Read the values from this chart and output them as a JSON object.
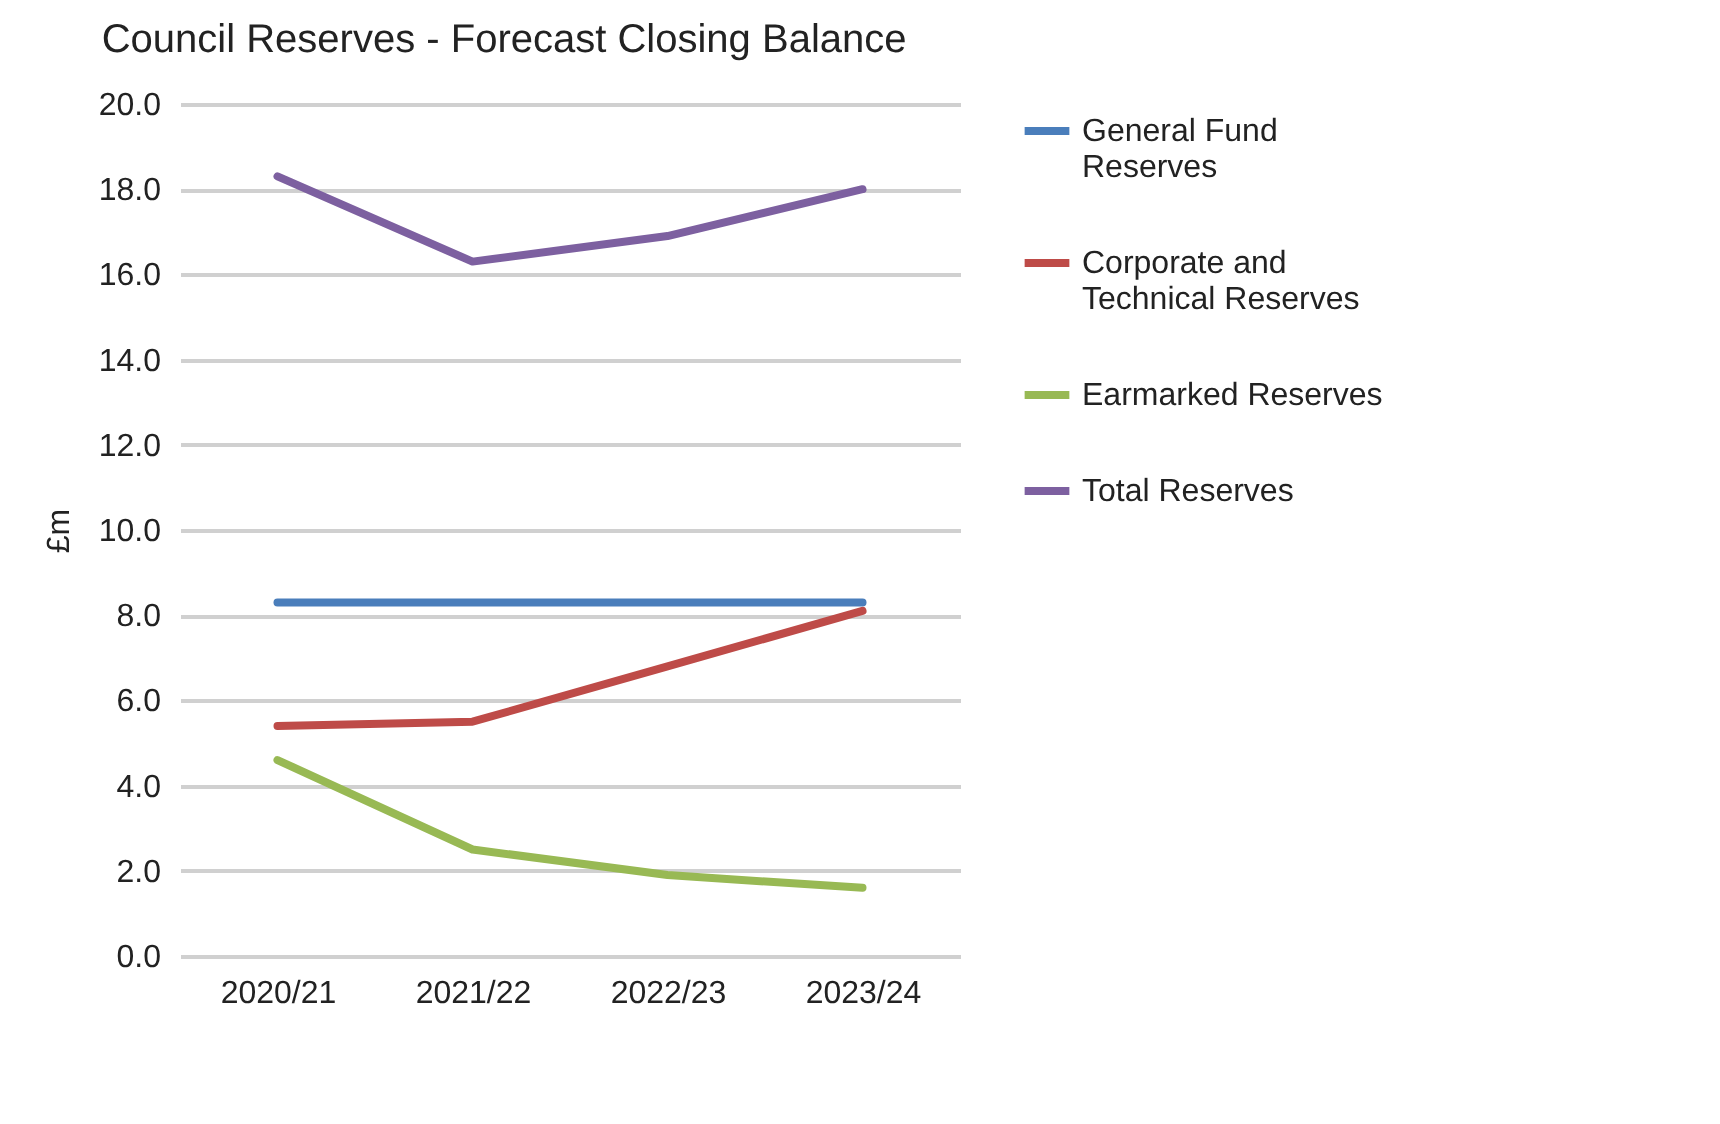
{
  "chart_data": {
    "type": "line",
    "title": "Council Reserves - Forecast Closing Balance",
    "ylabel": "£m",
    "categories": [
      "2020/21",
      "2021/22",
      "2022/23",
      "2023/24"
    ],
    "series": [
      {
        "name": "General Fund Reserves",
        "color": "#4a7ebb",
        "values": [
          8.3,
          8.3,
          8.3,
          8.3
        ]
      },
      {
        "name": "Corporate and Technical Reserves",
        "color": "#be4b48",
        "values": [
          5.4,
          5.5,
          6.8,
          8.1
        ]
      },
      {
        "name": "Earmarked Reserves",
        "color": "#98b954",
        "values": [
          4.6,
          2.5,
          1.9,
          1.6
        ]
      },
      {
        "name": "Total Reserves",
        "color": "#7d60a0",
        "values": [
          18.3,
          16.3,
          16.9,
          18.0
        ]
      }
    ],
    "ylim": [
      0,
      20
    ],
    "yticks": [
      {
        "value": 0,
        "label": "0.0"
      },
      {
        "value": 2,
        "label": "2.0"
      },
      {
        "value": 4,
        "label": "4.0"
      },
      {
        "value": 6,
        "label": "6.0"
      },
      {
        "value": 8,
        "label": "8.0"
      },
      {
        "value": 10,
        "label": "10.0"
      },
      {
        "value": 12,
        "label": "12.0"
      },
      {
        "value": 14,
        "label": "14.0"
      },
      {
        "value": 16,
        "label": "16.0"
      },
      {
        "value": 18,
        "label": "18.0"
      },
      {
        "value": 20,
        "label": "20.0"
      }
    ],
    "grid": "y",
    "legend": "right",
    "marker": "none",
    "line_style": "solid"
  }
}
